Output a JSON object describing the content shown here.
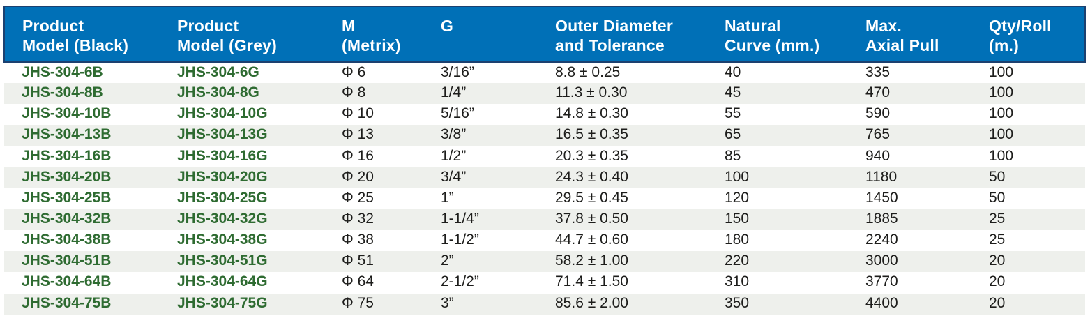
{
  "colors": {
    "header_bg": "#0070b7",
    "header_border": "#1c4170",
    "header_text": "#ffffff",
    "model_green": "#2e6b31",
    "body_text": "#1d1d1b",
    "row_bg": "#ffffff",
    "row_alt_bg": "#eef0ec"
  },
  "table": {
    "columns": [
      {
        "id": "model-black",
        "label": "Product\nModel (Black)"
      },
      {
        "id": "model-grey",
        "label": "Product\nModel (Grey)"
      },
      {
        "id": "m-metrix",
        "label": "M\n(Metrix)"
      },
      {
        "id": "g",
        "label": "G"
      },
      {
        "id": "outer-diameter",
        "label": "Outer Diameter\nand Tolerance"
      },
      {
        "id": "natural-curve",
        "label": "Natural\nCurve (mm.)"
      },
      {
        "id": "max-axial-pull",
        "label": "Max.\nAxial Pull"
      },
      {
        "id": "qty-roll",
        "label": "Qty/Roll\n(m.)"
      }
    ],
    "rows": [
      [
        "JHS-304-6B",
        "JHS-304-6G",
        "Φ 6",
        "3/16”",
        "8.8 ± 0.25",
        "40",
        "335",
        "100"
      ],
      [
        "JHS-304-8B",
        "JHS-304-8G",
        "Φ 8",
        "1/4”",
        "11.3 ± 0.30",
        "45",
        "470",
        "100"
      ],
      [
        "JHS-304-10B",
        "JHS-304-10G",
        "Φ 10",
        "5/16”",
        "14.8 ± 0.30",
        "55",
        "590",
        "100"
      ],
      [
        "JHS-304-13B",
        "JHS-304-13G",
        "Φ 13",
        "3/8”",
        "16.5 ± 0.35",
        "65",
        "765",
        "100"
      ],
      [
        "JHS-304-16B",
        "JHS-304-16G",
        "Φ 16",
        "1/2”",
        "20.3 ± 0.35",
        "85",
        "940",
        "100"
      ],
      [
        "JHS-304-20B",
        "JHS-304-20G",
        "Φ 20",
        "3/4”",
        "24.3 ± 0.40",
        "100",
        "1180",
        "50"
      ],
      [
        "JHS-304-25B",
        "JHS-304-25G",
        "Φ 25",
        "1”",
        "29.5 ± 0.45",
        "120",
        "1450",
        "50"
      ],
      [
        "JHS-304-32B",
        "JHS-304-32G",
        "Φ 32",
        "1-1/4”",
        "37.8 ± 0.50",
        "150",
        "1885",
        "25"
      ],
      [
        "JHS-304-38B",
        "JHS-304-38G",
        "Φ 38",
        "1-1/2”",
        "44.7 ± 0.60",
        "180",
        "2240",
        "25"
      ],
      [
        "JHS-304-51B",
        "JHS-304-51G",
        "Φ 51",
        "2”",
        "58.2 ± 1.00",
        "220",
        "3000",
        "20"
      ],
      [
        "JHS-304-64B",
        "JHS-304-64G",
        "Φ 64",
        "2-1/2”",
        "71.4 ± 1.50",
        "310",
        "3770",
        "20"
      ],
      [
        "JHS-304-75B",
        "JHS-304-75G",
        "Φ 75",
        "3”",
        "85.6 ± 2.00",
        "350",
        "4400",
        "20"
      ]
    ]
  }
}
